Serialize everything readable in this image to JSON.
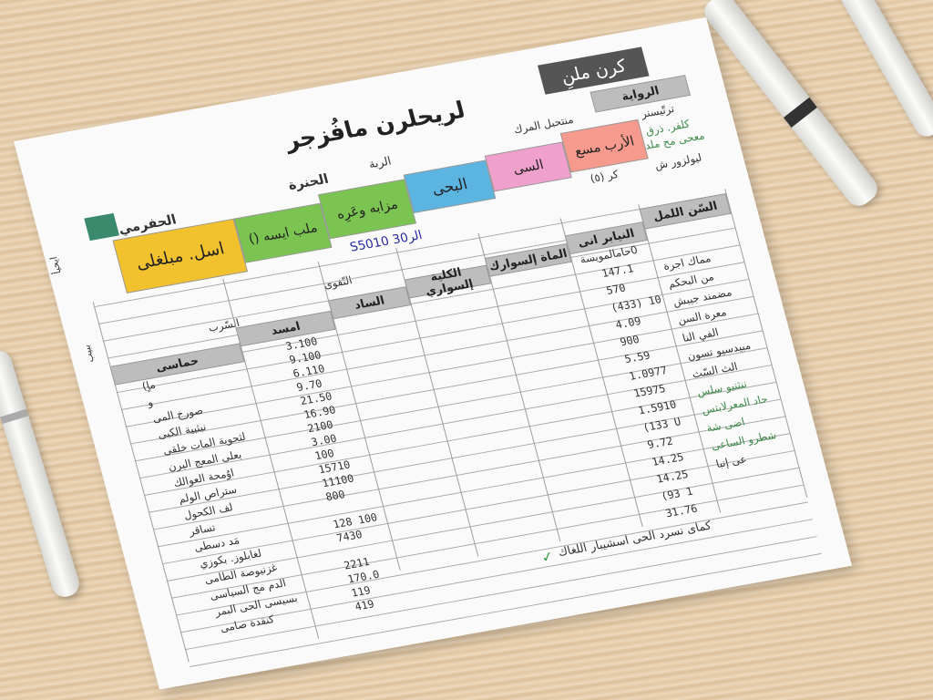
{
  "title": "لريحلرن مافُزجر",
  "badge": "كرن ملنِ",
  "colors": {
    "yellow": "#f2c12e",
    "green": "#7cc451",
    "blue": "#5bb5e0",
    "pink": "#f0a0cc",
    "salmon": "#f59a8c",
    "dark_badge": "#555555",
    "header_gray": "#bdbdbd",
    "check": "#3d9a4a"
  },
  "top_labels": [
    "الحفرمي",
    "الحنرة",
    "الربة",
    "منتحبل المرك",
    "الرواية"
  ],
  "color_cells": [
    "اسل. مبلغلى",
    "ملب ايسه ()",
    "مزابه وعَرِه",
    "البحى",
    "السى",
    "الأرب مسع"
  ],
  "handwritten": "S5010 30الر",
  "misc": [
    "كر (٥)",
    "النّفوى",
    "السّرب"
  ],
  "right_info": [
    "ترتّيسنر",
    "كلفر. ذرق",
    "معحى مح ملد",
    "ليولزور ش"
  ],
  "gray_headers": [
    "حماسى",
    "امسد",
    "الساد",
    "الكلية إلسواري",
    "الماة إلسوارك",
    "النيابر انى",
    "السّن اللمل"
  ],
  "left_items": [
    "ماٍ)",
    "و",
    "صورخ المى",
    "نبثبية الكبى",
    "لثحوية المات خلقى",
    "بعلى المعج البرن",
    "اوُمحة العوالك",
    "ستراص الولم",
    "لف الكحول",
    "تساقر",
    "مَد دسطى",
    "لغابلوز. بكوزي",
    "غزنيوصة الطامى",
    "الدم مج السياسى",
    "بسيسى الحى البمر",
    "كنقدة صامى"
  ],
  "left_values": [
    "3.100",
    "9.100",
    "6.110",
    "9.70",
    "21.50",
    "16.90",
    "2100",
    "3.00",
    "100",
    "15710",
    "11100",
    "800",
    "",
    "128 100",
    "7430",
    "",
    "2211",
    "170.0",
    "119",
    "419"
  ],
  "mid_value": "0حامالمويسة",
  "right_values": [
    "147.1",
    "570",
    "(433) 10",
    "4.09",
    "900",
    "5.59",
    "1.0977",
    "15975",
    "1.5910",
    "(133 U",
    "9.72",
    "14.25",
    "14.25",
    "(93 1",
    "31.76"
  ],
  "right_items": [
    "مماك اجرة",
    "من البحكم",
    "مضمند جيبش",
    "معرة السن",
    "الفي النا",
    "مبيدسيو تسون",
    "الث السّث",
    "ننثنيو سلس",
    "حاد المعرلابتس",
    "اضى شة",
    "شطرو الساعى",
    "عى إنبا"
  ],
  "right_items_green": [
    false,
    false,
    false,
    false,
    false,
    false,
    false,
    true,
    true,
    true,
    true,
    false
  ],
  "footer": "كماى نسرد الحى اسشيبار اللغاك",
  "side_marks": [
    "ايحيأ",
    "ببيب"
  ]
}
